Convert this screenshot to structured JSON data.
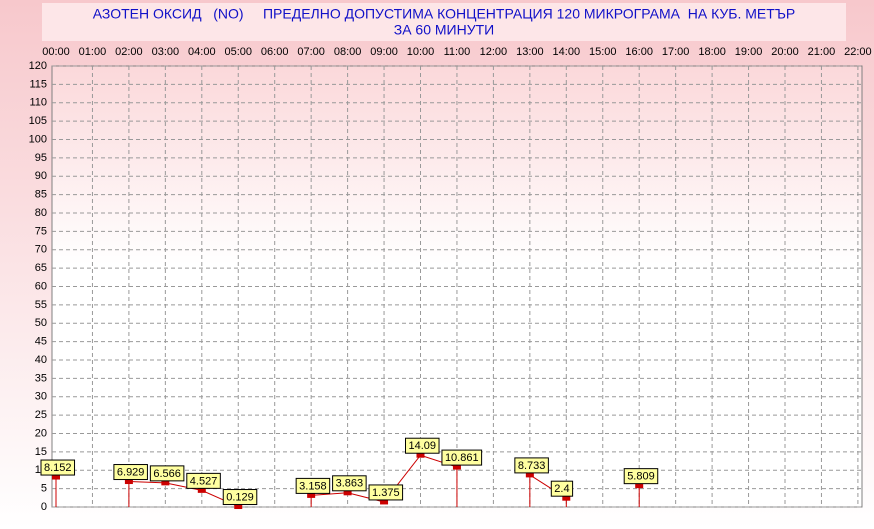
{
  "chart_data": {
    "type": "line",
    "title": "АЗОТЕН ОКСИД   (NO)     ПРЕДЕЛНО ДОПУСТИМА КОНЦЕНТРАЦИЯ 120 МИКРОГРАМА  НА КУБ. МЕТЪР",
    "subtitle": "ЗА 60 МИНУТИ",
    "categories": [
      "00:00",
      "01:00",
      "02:00",
      "03:00",
      "04:00",
      "05:00",
      "06:00",
      "07:00",
      "08:00",
      "09:00",
      "10:00",
      "11:00",
      "12:00",
      "13:00",
      "14:00",
      "15:00",
      "16:00",
      "17:00",
      "18:00",
      "19:00",
      "20:00",
      "21:00",
      "22:00"
    ],
    "series": [
      {
        "color": "#cc0000",
        "values": [
          8.152,
          null,
          6.929,
          6.566,
          4.527,
          0.129,
          null,
          3.158,
          3.863,
          1.375,
          14.09,
          10.861,
          null,
          8.733,
          2.4,
          null,
          5.809,
          null,
          null,
          null,
          null,
          null,
          null
        ]
      }
    ],
    "ylim": [
      0,
      120
    ],
    "yticks": [
      0,
      5,
      10,
      15,
      20,
      25,
      30,
      35,
      40,
      45,
      50,
      55,
      60,
      65,
      70,
      75,
      80,
      85,
      90,
      95,
      100,
      105,
      110,
      115,
      120
    ],
    "grid": true
  }
}
